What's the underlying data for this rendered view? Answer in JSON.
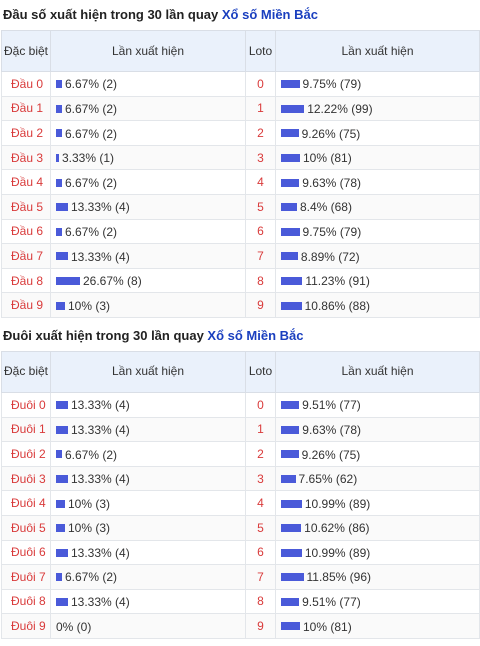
{
  "colors": {
    "bar": "#4a5ad9",
    "label": "#d93a3a",
    "link": "#1a3fbf",
    "header_bg": "#eaf1fb"
  },
  "dau": {
    "title_prefix": "Đầu số xuất hiện trong 30 lần quay ",
    "title_link": "Xổ số Miền Bắc",
    "headers": {
      "col1": "Đặc biệt",
      "col2": "Lần xuất hiện",
      "col3": "Loto",
      "col4": "Lần xuất hiện"
    },
    "rows": [
      {
        "label": "Đầu 0",
        "db_text": "6.67% (2)",
        "db_pct": 6.67,
        "loto": "0",
        "loto_text": "9.75% (79)",
        "loto_pct": 9.75
      },
      {
        "label": "Đầu 1",
        "db_text": "6.67% (2)",
        "db_pct": 6.67,
        "loto": "1",
        "loto_text": "12.22% (99)",
        "loto_pct": 12.22
      },
      {
        "label": "Đầu 2",
        "db_text": "6.67% (2)",
        "db_pct": 6.67,
        "loto": "2",
        "loto_text": "9.26% (75)",
        "loto_pct": 9.26
      },
      {
        "label": "Đầu 3",
        "db_text": "3.33% (1)",
        "db_pct": 3.33,
        "loto": "3",
        "loto_text": "10% (81)",
        "loto_pct": 10
      },
      {
        "label": "Đầu 4",
        "db_text": "6.67% (2)",
        "db_pct": 6.67,
        "loto": "4",
        "loto_text": "9.63% (78)",
        "loto_pct": 9.63
      },
      {
        "label": "Đầu 5",
        "db_text": "13.33% (4)",
        "db_pct": 13.33,
        "loto": "5",
        "loto_text": "8.4% (68)",
        "loto_pct": 8.4
      },
      {
        "label": "Đầu 6",
        "db_text": "6.67% (2)",
        "db_pct": 6.67,
        "loto": "6",
        "loto_text": "9.75% (79)",
        "loto_pct": 9.75
      },
      {
        "label": "Đầu 7",
        "db_text": "13.33% (4)",
        "db_pct": 13.33,
        "loto": "7",
        "loto_text": "8.89% (72)",
        "loto_pct": 8.89
      },
      {
        "label": "Đầu 8",
        "db_text": "26.67% (8)",
        "db_pct": 26.67,
        "loto": "8",
        "loto_text": "11.23% (91)",
        "loto_pct": 11.23
      },
      {
        "label": "Đầu 9",
        "db_text": "10% (3)",
        "db_pct": 10,
        "loto": "9",
        "loto_text": "10.86% (88)",
        "loto_pct": 10.86
      }
    ]
  },
  "duoi": {
    "title_prefix": "Đuôi xuất hiện trong 30 lần quay ",
    "title_link": "Xổ số Miền Bắc",
    "headers": {
      "col1": "Đặc biệt",
      "col2": "Lần xuất hiện",
      "col3": "Loto",
      "col4": "Lần xuất hiện"
    },
    "rows": [
      {
        "label": "Đuôi 0",
        "db_text": "13.33% (4)",
        "db_pct": 13.33,
        "loto": "0",
        "loto_text": "9.51% (77)",
        "loto_pct": 9.51
      },
      {
        "label": "Đuôi 1",
        "db_text": "13.33% (4)",
        "db_pct": 13.33,
        "loto": "1",
        "loto_text": "9.63% (78)",
        "loto_pct": 9.63
      },
      {
        "label": "Đuôi 2",
        "db_text": "6.67% (2)",
        "db_pct": 6.67,
        "loto": "2",
        "loto_text": "9.26% (75)",
        "loto_pct": 9.26
      },
      {
        "label": "Đuôi 3",
        "db_text": "13.33% (4)",
        "db_pct": 13.33,
        "loto": "3",
        "loto_text": "7.65% (62)",
        "loto_pct": 7.65
      },
      {
        "label": "Đuôi 4",
        "db_text": "10% (3)",
        "db_pct": 10,
        "loto": "4",
        "loto_text": "10.99% (89)",
        "loto_pct": 10.99
      },
      {
        "label": "Đuôi 5",
        "db_text": "10% (3)",
        "db_pct": 10,
        "loto": "5",
        "loto_text": "10.62% (86)",
        "loto_pct": 10.62
      },
      {
        "label": "Đuôi 6",
        "db_text": "13.33% (4)",
        "db_pct": 13.33,
        "loto": "6",
        "loto_text": "10.99% (89)",
        "loto_pct": 10.99
      },
      {
        "label": "Đuôi 7",
        "db_text": "6.67% (2)",
        "db_pct": 6.67,
        "loto": "7",
        "loto_text": "11.85% (96)",
        "loto_pct": 11.85
      },
      {
        "label": "Đuôi 8",
        "db_text": "13.33% (4)",
        "db_pct": 13.33,
        "loto": "8",
        "loto_text": "9.51% (77)",
        "loto_pct": 9.51
      },
      {
        "label": "Đuôi 9",
        "db_text": "0% (0)",
        "db_pct": 0,
        "loto": "9",
        "loto_text": "10% (81)",
        "loto_pct": 10
      }
    ]
  }
}
